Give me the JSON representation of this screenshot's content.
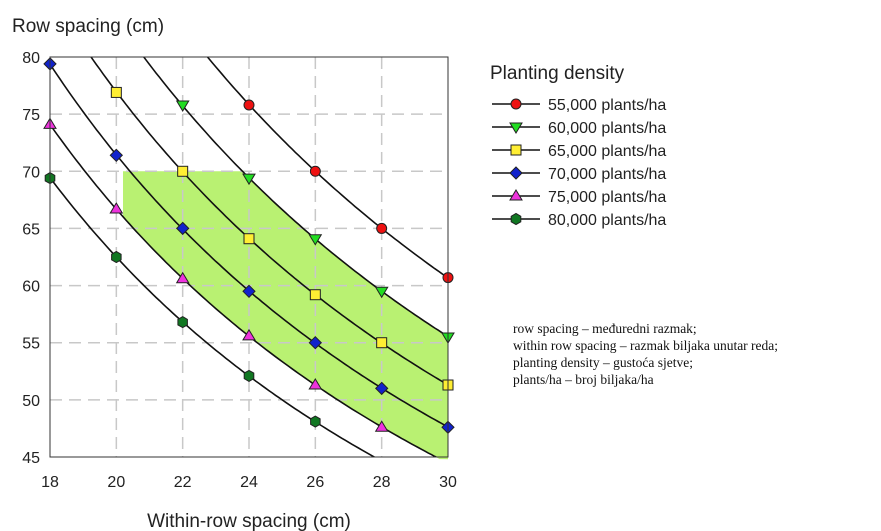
{
  "chart_data": {
    "type": "line",
    "ylabel": "Row spacing (cm)",
    "xlabel": "Within-row spacing (cm)",
    "xlim": [
      18,
      30
    ],
    "ylim": [
      45,
      80
    ],
    "x_ticks": [
      "18",
      "20",
      "22",
      "24",
      "26",
      "28",
      "30"
    ],
    "y_ticks": [
      "45",
      "50",
      "55",
      "60",
      "65",
      "70",
      "75",
      "80"
    ],
    "grid": true,
    "legend_title": "Planting density",
    "legend_position": "right",
    "optimal_zone_color": "#b5f06a",
    "series": [
      {
        "name": "55,000 plants/ha",
        "marker": "circle",
        "color": "#ee1111",
        "x": [
          24,
          26,
          28,
          30
        ],
        "y": [
          75.8,
          70.0,
          65.0,
          60.7
        ]
      },
      {
        "name": "60,000 plants/ha",
        "marker": "triangle-down",
        "color": "#22dd22",
        "x": [
          22,
          24,
          26,
          28,
          30
        ],
        "y": [
          75.8,
          69.4,
          64.1,
          59.5,
          55.5
        ]
      },
      {
        "name": "65,000 plants/ha",
        "marker": "square",
        "color": "#ffee33",
        "x": [
          20,
          22,
          24,
          26,
          28,
          30
        ],
        "y": [
          76.9,
          70.0,
          64.1,
          59.2,
          55.0,
          51.3
        ]
      },
      {
        "name": "70,000 plants/ha",
        "marker": "diamond",
        "color": "#1122cc",
        "x": [
          18,
          20,
          22,
          24,
          26,
          28,
          30
        ],
        "y": [
          79.4,
          71.4,
          65.0,
          59.5,
          55.0,
          51.0,
          47.6
        ]
      },
      {
        "name": "75,000 plants/ha",
        "marker": "triangle-up",
        "color": "#ee33dd",
        "x": [
          18,
          20,
          22,
          24,
          26,
          28
        ],
        "y": [
          74.1,
          66.7,
          60.6,
          55.6,
          51.3,
          47.6
        ]
      },
      {
        "name": "80,000 plants/ha",
        "marker": "hexagon",
        "color": "#117722",
        "x": [
          18,
          20,
          22,
          24,
          26
        ],
        "y": [
          69.4,
          62.5,
          56.8,
          52.1,
          48.1
        ]
      }
    ]
  },
  "glossary": [
    "row spacing – međuredni razmak;",
    "within row spacing – razmak biljaka unutar reda;",
    "planting density – gustoća sjetve;",
    "plants/ha – broj biljaka/ha"
  ]
}
